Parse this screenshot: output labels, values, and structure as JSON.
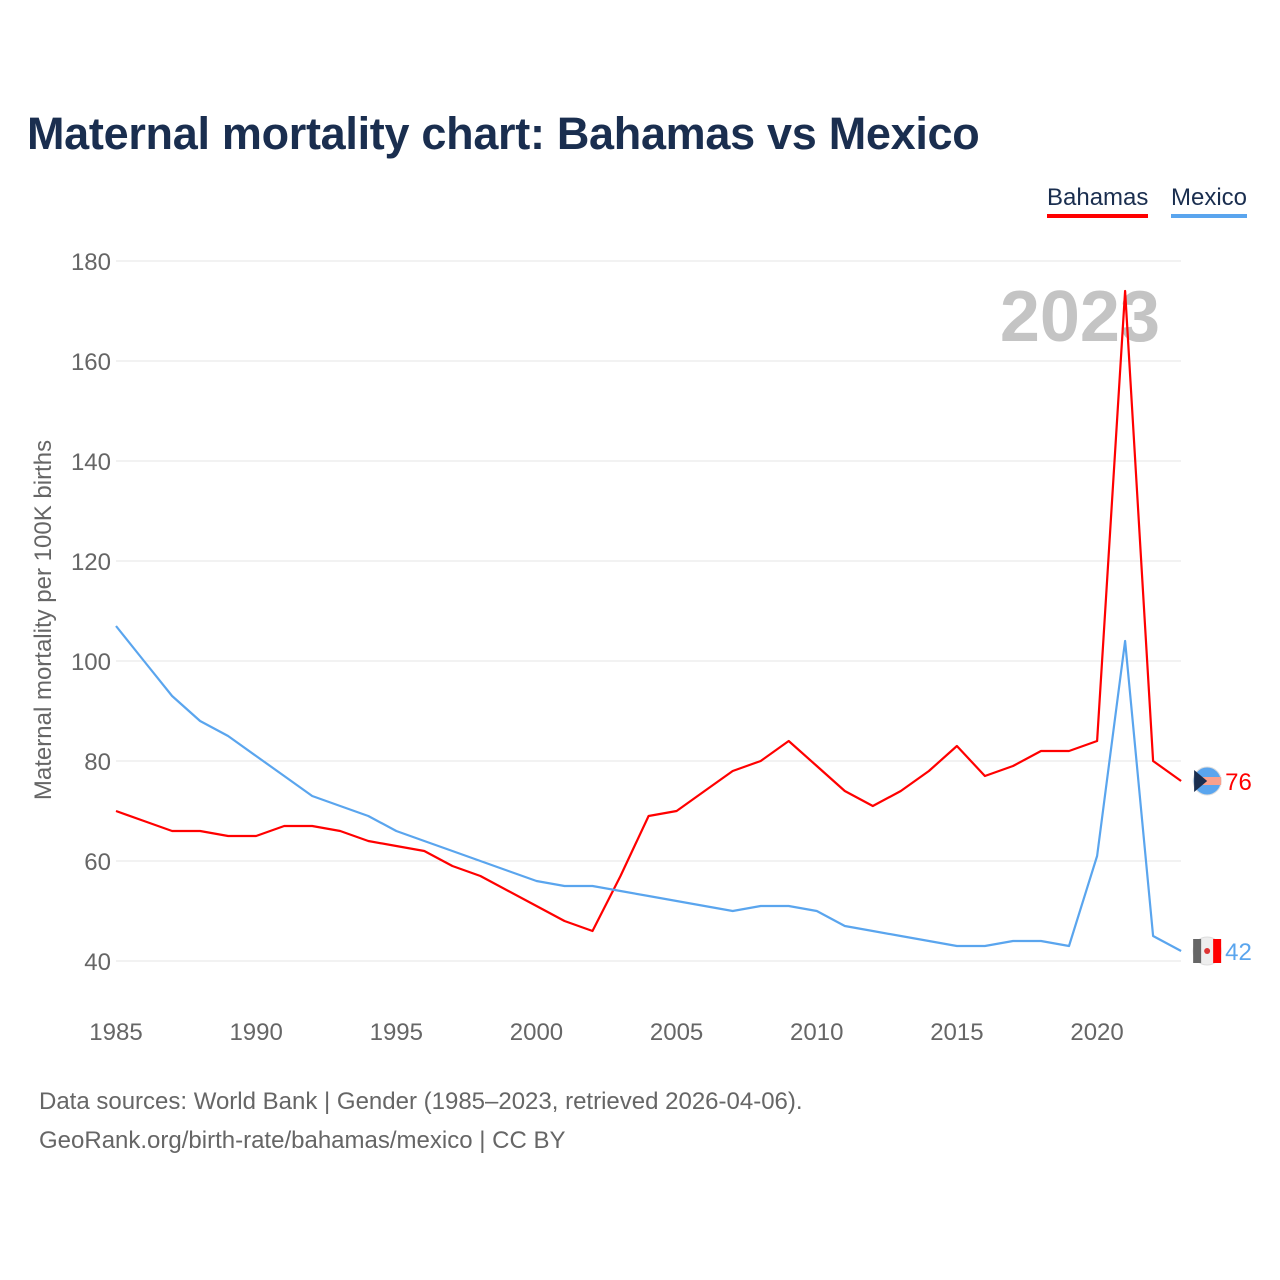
{
  "title": "Maternal mortality chart: Bahamas vs Mexico",
  "legend": [
    {
      "label": "Bahamas",
      "color": "#ff0000"
    },
    {
      "label": "Mexico",
      "color": "#5aa5ee"
    }
  ],
  "source_line1": "Data sources: World Bank | Gender (1985–2023, retrieved 2026-04-06).",
  "source_line2": "GeoRank.org/birth-rate/bahamas/mexico | CC BY",
  "chart_data": {
    "type": "line",
    "title": "Maternal mortality chart: Bahamas vs Mexico",
    "ylabel": "Maternal mortality per 100K births",
    "xlabel": "",
    "year_watermark": "2023",
    "ylim": [
      40,
      180
    ],
    "yticks": [
      40,
      60,
      80,
      100,
      120,
      140,
      160,
      180
    ],
    "xlim": [
      1985,
      2023
    ],
    "xticks": [
      1985,
      1990,
      1995,
      2000,
      2005,
      2010,
      2015,
      2020
    ],
    "grid": true,
    "legend_position": "top-right",
    "x": [
      1985,
      1986,
      1987,
      1988,
      1989,
      1990,
      1991,
      1992,
      1993,
      1994,
      1995,
      1996,
      1997,
      1998,
      1999,
      2000,
      2001,
      2002,
      2003,
      2004,
      2005,
      2006,
      2007,
      2008,
      2009,
      2010,
      2011,
      2012,
      2013,
      2014,
      2015,
      2016,
      2017,
      2018,
      2019,
      2020,
      2021,
      2022,
      2023
    ],
    "series": [
      {
        "name": "Bahamas",
        "color": "#ff0000",
        "end_label": "76",
        "values": [
          70,
          68,
          66,
          66,
          65,
          65,
          67,
          67,
          66,
          64,
          63,
          62,
          59,
          57,
          54,
          51,
          48,
          46,
          57,
          69,
          70,
          74,
          78,
          80,
          84,
          79,
          74,
          71,
          74,
          78,
          83,
          77,
          79,
          82,
          82,
          84,
          174,
          80,
          76
        ]
      },
      {
        "name": "Mexico",
        "color": "#5aa5ee",
        "end_label": "42",
        "values": [
          107,
          100,
          93,
          88,
          85,
          81,
          77,
          73,
          71,
          69,
          66,
          64,
          62,
          60,
          58,
          56,
          55,
          55,
          54,
          53,
          52,
          51,
          50,
          51,
          51,
          50,
          47,
          46,
          45,
          44,
          43,
          43,
          44,
          44,
          43,
          61,
          104,
          45,
          42
        ]
      }
    ]
  }
}
